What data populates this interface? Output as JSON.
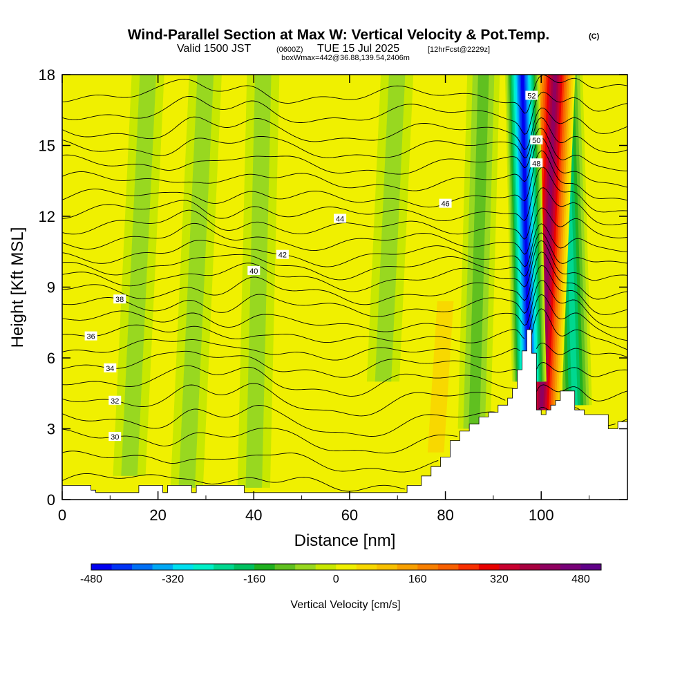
{
  "title": {
    "main": "Wind-Parallel Section at Max W: Vertical Velocity & Pot.Temp.",
    "mark": "(C)",
    "valid_a": "Valid 1500 JST",
    "valid_b": "(0600Z)",
    "valid_c": "TUE 15 Jul 2025",
    "valid_d": "[12hrFcst@2229z]",
    "box": "boxWmax=442@36.88,139.54,2406m"
  },
  "chart_data": {
    "type": "heatmap",
    "xlabel": "Distance [nm]",
    "ylabel": "Height [Kft MSL]",
    "xlim": [
      0,
      118
    ],
    "ylim": [
      0,
      18
    ],
    "x_ticks": [
      "0",
      "20",
      "40",
      "60",
      "80",
      "100"
    ],
    "y_ticks": [
      "0",
      "3",
      "6",
      "9",
      "12",
      "15",
      "18"
    ],
    "colorbar": {
      "label": "Vertical Velocity [cm/s]",
      "range": [
        -480,
        520
      ],
      "tick_values": [
        -480,
        -320,
        -160,
        0,
        160,
        320,
        480
      ],
      "tick_labels": [
        "-480",
        "-320",
        "-160",
        "0",
        "160",
        "320",
        "480"
      ],
      "colors": [
        "#0000f0",
        "#0033f5",
        "#0070f5",
        "#00a8f5",
        "#00e0f0",
        "#00f0c8",
        "#00d890",
        "#00c060",
        "#20b020",
        "#60c020",
        "#98d820",
        "#c8e800",
        "#f0f000",
        "#f8d800",
        "#f8c000",
        "#f8a000",
        "#f88000",
        "#f86000",
        "#f83000",
        "#e80000",
        "#c80030",
        "#a80040",
        "#900060",
        "#780078",
        "#600088"
      ]
    },
    "surface_terrain_kft": {
      "x_nm": [
        0,
        5,
        6,
        7,
        15,
        16,
        20,
        21,
        22,
        23,
        27,
        28,
        31,
        32,
        37,
        38,
        40,
        42,
        50,
        55,
        62,
        70,
        72,
        75,
        77,
        79,
        81,
        83,
        85,
        87,
        89,
        91,
        93,
        94,
        95,
        96,
        97,
        98,
        99,
        100,
        101,
        102,
        103,
        104,
        105,
        107,
        109,
        111,
        114,
        116,
        118
      ],
      "h_kft": [
        0.6,
        0.6,
        0.4,
        0.3,
        0.3,
        0.6,
        0.6,
        0.3,
        0.6,
        0.6,
        0.3,
        0.6,
        0.6,
        0.6,
        0.6,
        0.3,
        0.3,
        0.3,
        0.3,
        0.3,
        0.3,
        0.3,
        0.6,
        1.0,
        1.4,
        1.8,
        2.5,
        2.9,
        3.2,
        3.5,
        3.7,
        4.0,
        4.3,
        4.7,
        5.5,
        6.3,
        7.2,
        6.2,
        3.8,
        3.6,
        3.8,
        4.0,
        4.2,
        4.6,
        4.6,
        3.8,
        3.6,
        3.6,
        3.0,
        3.3,
        3.3
      ]
    },
    "theta_contours_C": {
      "levels": [
        28,
        29,
        30,
        31,
        32,
        33,
        34,
        35,
        36,
        37,
        38,
        39,
        40,
        41,
        42,
        43,
        44,
        45,
        46,
        47,
        48,
        49,
        50,
        51,
        52
      ],
      "level_height_kft": [
        0.8,
        1.7,
        2.6,
        3.4,
        4.3,
        5.1,
        5.8,
        6.4,
        7.0,
        7.6,
        8.2,
        8.8,
        9.4,
        9.9,
        10.4,
        11.0,
        11.6,
        12.2,
        12.8,
        13.5,
        14.2,
        14.9,
        15.6,
        16.4,
        17.2
      ],
      "labeled_levels": [
        "30",
        "32",
        "34",
        "36",
        "38",
        "40",
        "42",
        "44",
        "46",
        "48",
        "50",
        "52"
      ]
    },
    "vertical_velocity_features": [
      {
        "kind": "updraft_core",
        "x_nm": 100,
        "x_top_nm": 103,
        "base_kft": 3.8,
        "top_kft": 18,
        "peak_cm_s": 442
      },
      {
        "kind": "downdraft",
        "x_nm": 97.5,
        "x_top_nm": 96,
        "base_kft": 5.0,
        "top_kft": 18,
        "peak_cm_s": -480
      },
      {
        "kind": "downdraft",
        "x_nm": 107,
        "x_top_nm": 105,
        "base_kft": 4.0,
        "top_kft": 18,
        "peak_cm_s": -220
      },
      {
        "kind": "weak_downdraft",
        "x_nm": 26,
        "x_top_nm": 30,
        "base_kft": 0.5,
        "top_kft": 18,
        "peak_cm_s": -90
      },
      {
        "kind": "weak_downdraft",
        "x_nm": 40,
        "x_top_nm": 42,
        "base_kft": 0.5,
        "top_kft": 18,
        "peak_cm_s": -80
      },
      {
        "kind": "weak_downdraft",
        "x_nm": 14,
        "x_top_nm": 18,
        "base_kft": 1.0,
        "top_kft": 18,
        "peak_cm_s": -60
      },
      {
        "kind": "weak_downdraft",
        "x_nm": 67,
        "x_top_nm": 70,
        "base_kft": 5.0,
        "top_kft": 18,
        "peak_cm_s": -70
      },
      {
        "kind": "weak_downdraft",
        "x_nm": 86,
        "x_top_nm": 88,
        "base_kft": 3.0,
        "top_kft": 18,
        "peak_cm_s": -110
      },
      {
        "kind": "weak_updraft",
        "x_nm": 78,
        "x_top_nm": 80,
        "base_kft": 2.0,
        "top_kft": 8,
        "peak_cm_s": 90
      }
    ]
  }
}
